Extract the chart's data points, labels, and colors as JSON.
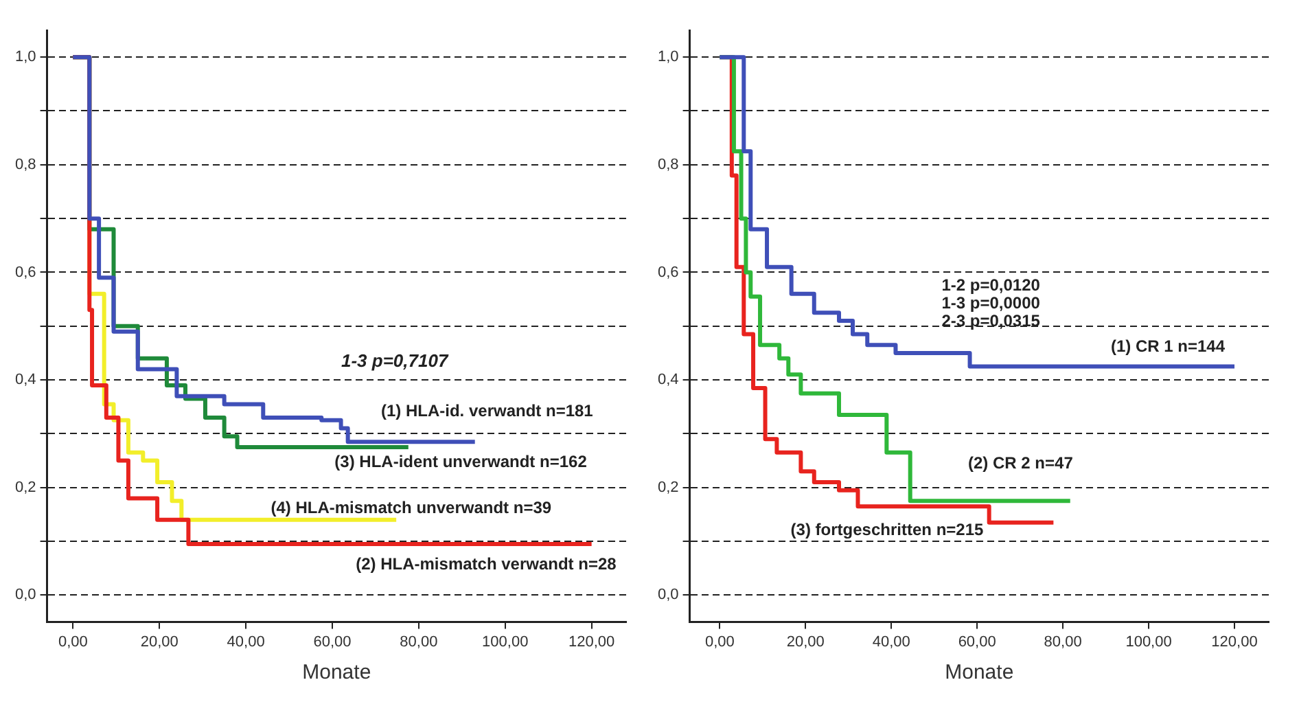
{
  "chart_data": [
    {
      "type": "step",
      "xlabel": "Monate",
      "xlim": [
        -6,
        128
      ],
      "ylim": [
        -0.05,
        1.05
      ],
      "grid": "y",
      "xticks": [
        {
          "value": 0,
          "label": "0,00"
        },
        {
          "value": 20,
          "label": "20,00"
        },
        {
          "value": 40,
          "label": "40,00"
        },
        {
          "value": 60,
          "label": "60,00"
        },
        {
          "value": 80,
          "label": "80,00"
        },
        {
          "value": 100,
          "label": "100,00"
        },
        {
          "value": 120,
          "label": "120,00"
        }
      ],
      "yticks": [
        {
          "value": 0,
          "label": "0,0"
        },
        {
          "value": 0.1,
          "label": null
        },
        {
          "value": 0.2,
          "label": "0,2"
        },
        {
          "value": 0.3,
          "label": null
        },
        {
          "value": 0.4,
          "label": "0,4"
        },
        {
          "value": 0.5,
          "label": null
        },
        {
          "value": 0.6,
          "label": "0,6"
        },
        {
          "value": 0.7,
          "label": null
        },
        {
          "value": 0.8,
          "label": "0,8"
        },
        {
          "value": 0.9,
          "label": null
        },
        {
          "value": 1,
          "label": "1,0"
        }
      ],
      "annotations": [
        "1-3 p=0,7107"
      ],
      "series": [
        {
          "name": "(1) HLA-id. verwandt n=181",
          "color": "#3f4fb8",
          "x": [
            0,
            3.8,
            6,
            9.4,
            15,
            24,
            35,
            44,
            57.5,
            62,
            63.6,
            93
          ],
          "values": [
            1,
            0.7,
            0.59,
            0.49,
            0.42,
            0.37,
            0.355,
            0.33,
            0.325,
            0.31,
            0.285,
            0.285
          ]
        },
        {
          "name": "(2) HLA-mismatch verwandt n=28",
          "color": "#e8231e",
          "x": [
            0,
            3.8,
            4.4,
            7.7,
            10.5,
            12.8,
            19.5,
            26.7,
            120
          ],
          "values": [
            1,
            0.53,
            0.39,
            0.33,
            0.25,
            0.18,
            0.14,
            0.095,
            0.095
          ]
        },
        {
          "name": "(3) HLA-ident unverwandt n=162",
          "color": "#1f8a3a",
          "x": [
            0,
            3.8,
            9.4,
            15,
            21.7,
            26,
            30.6,
            35,
            38,
            77.6
          ],
          "values": [
            1,
            0.68,
            0.5,
            0.44,
            0.39,
            0.365,
            0.33,
            0.295,
            0.275,
            0.275
          ]
        },
        {
          "name": "(4) HLA-mismatch unverwandt n=39",
          "color": "#f2ee2a",
          "x": [
            0,
            3.8,
            7.2,
            9.4,
            12.8,
            16.2,
            19.5,
            22.9,
            25.1,
            74.8
          ],
          "values": [
            1,
            0.56,
            0.355,
            0.325,
            0.265,
            0.25,
            0.21,
            0.175,
            0.14,
            0.14
          ]
        }
      ]
    },
    {
      "type": "step",
      "xlabel": "Monate",
      "xlim": [
        -7,
        128
      ],
      "ylim": [
        -0.05,
        1.05
      ],
      "grid": "y",
      "xticks": [
        {
          "value": 0,
          "label": "0,00"
        },
        {
          "value": 20,
          "label": "20,00"
        },
        {
          "value": 40,
          "label": "40,00"
        },
        {
          "value": 60,
          "label": "60,00"
        },
        {
          "value": 80,
          "label": "80,00"
        },
        {
          "value": 100,
          "label": "100,00"
        },
        {
          "value": 120,
          "label": "120,00"
        }
      ],
      "yticks": [
        {
          "value": 0,
          "label": "0,0"
        },
        {
          "value": 0.1,
          "label": null
        },
        {
          "value": 0.2,
          "label": "0,2"
        },
        {
          "value": 0.3,
          "label": null
        },
        {
          "value": 0.4,
          "label": "0,4"
        },
        {
          "value": 0.5,
          "label": null
        },
        {
          "value": 0.6,
          "label": "0,6"
        },
        {
          "value": 0.7,
          "label": null
        },
        {
          "value": 0.8,
          "label": "0,8"
        },
        {
          "value": 0.9,
          "label": null
        },
        {
          "value": 1,
          "label": "1,0"
        }
      ],
      "annotations": [
        "1-2 p=0,0120",
        "1-3 p=0,0000",
        "2-3 p=0,0315"
      ],
      "series": [
        {
          "name": "(1) CR 1 n=144",
          "color": "#3f4fb8",
          "x": [
            0,
            5.6,
            7.2,
            11,
            16.7,
            22,
            27.8,
            31,
            34.4,
            41,
            58.3,
            120
          ],
          "values": [
            1,
            0.825,
            0.68,
            0.61,
            0.56,
            0.525,
            0.51,
            0.485,
            0.465,
            0.45,
            0.425,
            0.425
          ]
        },
        {
          "name": "(2) CR 2 n=47",
          "color": "#2fb83a",
          "x": [
            0,
            3.3,
            5,
            6.1,
            7.2,
            9.4,
            13.9,
            16,
            18.9,
            27.8,
            38.9,
            44.4,
            81.7
          ],
          "values": [
            1,
            0.825,
            0.7,
            0.6,
            0.555,
            0.465,
            0.44,
            0.41,
            0.375,
            0.335,
            0.265,
            0.175,
            0.175
          ]
        },
        {
          "name": "(3) fortgeschritten n=215",
          "color": "#e8231e",
          "x": [
            0,
            2.8,
            3.9,
            5.6,
            7.8,
            10.6,
            13.3,
            18.9,
            22,
            27.8,
            32.2,
            62.8,
            77.8
          ],
          "values": [
            1,
            0.78,
            0.61,
            0.485,
            0.385,
            0.29,
            0.265,
            0.23,
            0.21,
            0.195,
            0.165,
            0.135,
            0.135
          ]
        }
      ]
    }
  ]
}
